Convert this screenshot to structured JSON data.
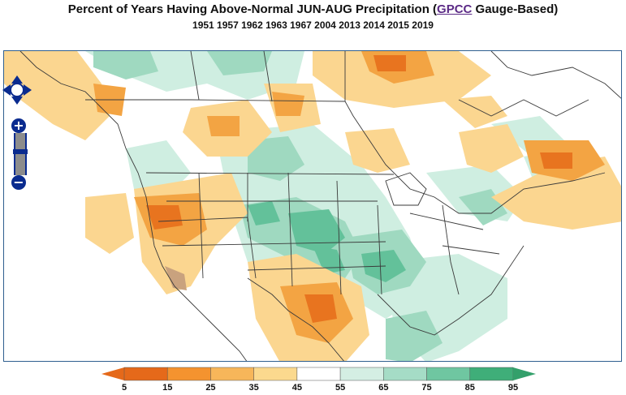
{
  "title": {
    "prefix": "Percent of Years Having Above-Normal JUN-AUG Precipitation (",
    "link": "GPCC",
    "suffix": " Gauge-Based)",
    "years": "1951 1957 1962 1963 1967 2004 2013 2014 2015 2019"
  },
  "controls": {
    "pan_icon": "pan-arrows-icon",
    "zoom_in_label": "+",
    "zoom_out_label": "−"
  },
  "legend": {
    "ticks": [
      "5",
      "15",
      "25",
      "35",
      "45",
      "55",
      "65",
      "75",
      "85",
      "95"
    ],
    "colors": [
      "#e5691a",
      "#f4932f",
      "#f7b65a",
      "#fbd98e",
      "#ffffff",
      "#d4eee3",
      "#a5dcc6",
      "#6fc6a1",
      "#3fae79"
    ],
    "low_arrow_color": "#e5691a",
    "high_arrow_color": "#33a06b"
  },
  "palette": {
    "dry_strong": "#e8741f",
    "dry": "#f3a443",
    "dry_light": "#fbd690",
    "wet_light": "#cfeee1",
    "wet": "#9fd9c0",
    "wet_strong": "#63c19a",
    "extreme_dry": "#c9a27e",
    "border": "#3a3a3a",
    "frame": "#2f5f8f"
  }
}
